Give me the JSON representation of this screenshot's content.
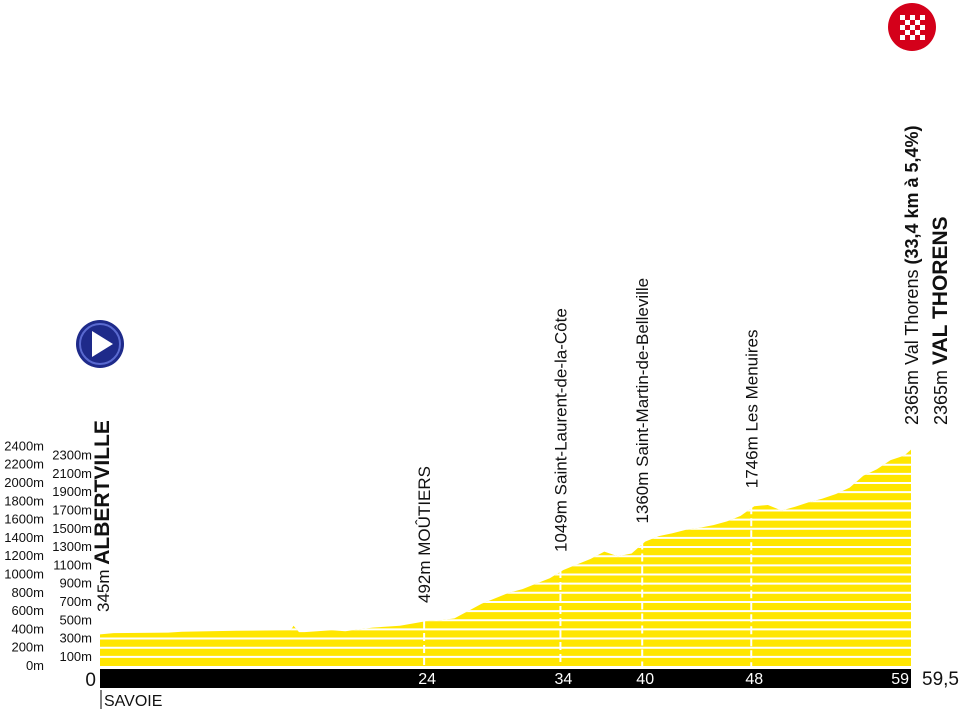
{
  "chart_data": {
    "type": "area",
    "title": "",
    "xlabel": "",
    "ylabel": "",
    "xlim": [
      0,
      59.5
    ],
    "ylim": [
      0,
      2400
    ],
    "fill_color": "#ffe600",
    "stripe_color": "#ffffff",
    "grid": false,
    "y_ticks": [
      "0m",
      "100m",
      "200m",
      "300m",
      "400m",
      "500m",
      "600m",
      "700m",
      "800m",
      "900m",
      "1000m",
      "1100m",
      "1200m",
      "1300m",
      "1400m",
      "1500m",
      "1600m",
      "1700m",
      "1800m",
      "1900m",
      "2000m",
      "2100m",
      "2200m",
      "2300m",
      "2400m"
    ],
    "x_ticks": [
      {
        "km": 24,
        "label": "24"
      },
      {
        "km": 34,
        "label": "34"
      },
      {
        "km": 40,
        "label": "40"
      },
      {
        "km": 48,
        "label": "48"
      },
      {
        "km": 59,
        "label": "59"
      }
    ],
    "x_start_label": "0",
    "x_end_label": "59,5",
    "profile": {
      "x": [
        0,
        1,
        5,
        6,
        10,
        14,
        14.2,
        14.6,
        15,
        17,
        18,
        19,
        20,
        22,
        24,
        25,
        26,
        27,
        28,
        29,
        30,
        31,
        32,
        33,
        34,
        35,
        36,
        37,
        38,
        39,
        40,
        41,
        42,
        43,
        44,
        45,
        46,
        47,
        48,
        49,
        50,
        51,
        52,
        53,
        54,
        55,
        56,
        57,
        58,
        59,
        59.5
      ],
      "y": [
        345,
        360,
        365,
        375,
        385,
        390,
        440,
        370,
        370,
        390,
        380,
        400,
        420,
        440,
        492,
        500,
        520,
        600,
        680,
        740,
        800,
        840,
        900,
        960,
        1049,
        1110,
        1170,
        1250,
        1200,
        1230,
        1360,
        1420,
        1450,
        1490,
        1510,
        1540,
        1580,
        1640,
        1746,
        1760,
        1700,
        1740,
        1790,
        1830,
        1880,
        1950,
        2080,
        2150,
        2250,
        2300,
        2365
      ]
    },
    "waypoints": [
      {
        "km": 0,
        "alt": "345m",
        "name": "ALBERTVILLE",
        "bold": true
      },
      {
        "km": 24,
        "alt": "492m",
        "name": "MOÛTIERS",
        "bold": false
      },
      {
        "km": 34,
        "alt": "1049m",
        "name": "Saint-Laurent-de-la-Côte",
        "bold": false
      },
      {
        "km": 40,
        "alt": "1360m",
        "name": "Saint-Martin-de-Belleville",
        "bold": false
      },
      {
        "km": 48,
        "alt": "1746m",
        "name": "Les Menuires",
        "bold": false
      }
    ],
    "finish_climb": {
      "alt": "2365m",
      "name": "Val Thorens",
      "detail": "(33,4 km à 5,4%)"
    },
    "finish": {
      "alt": "2365m",
      "name": "VAL THORENS"
    },
    "department": "SAVOIE"
  },
  "icons": {
    "start": "start-arrow-icon",
    "finish": "finish-checkered-flag-icon",
    "start_color": "#1e2a8a",
    "finish_color": "#d4001a"
  }
}
